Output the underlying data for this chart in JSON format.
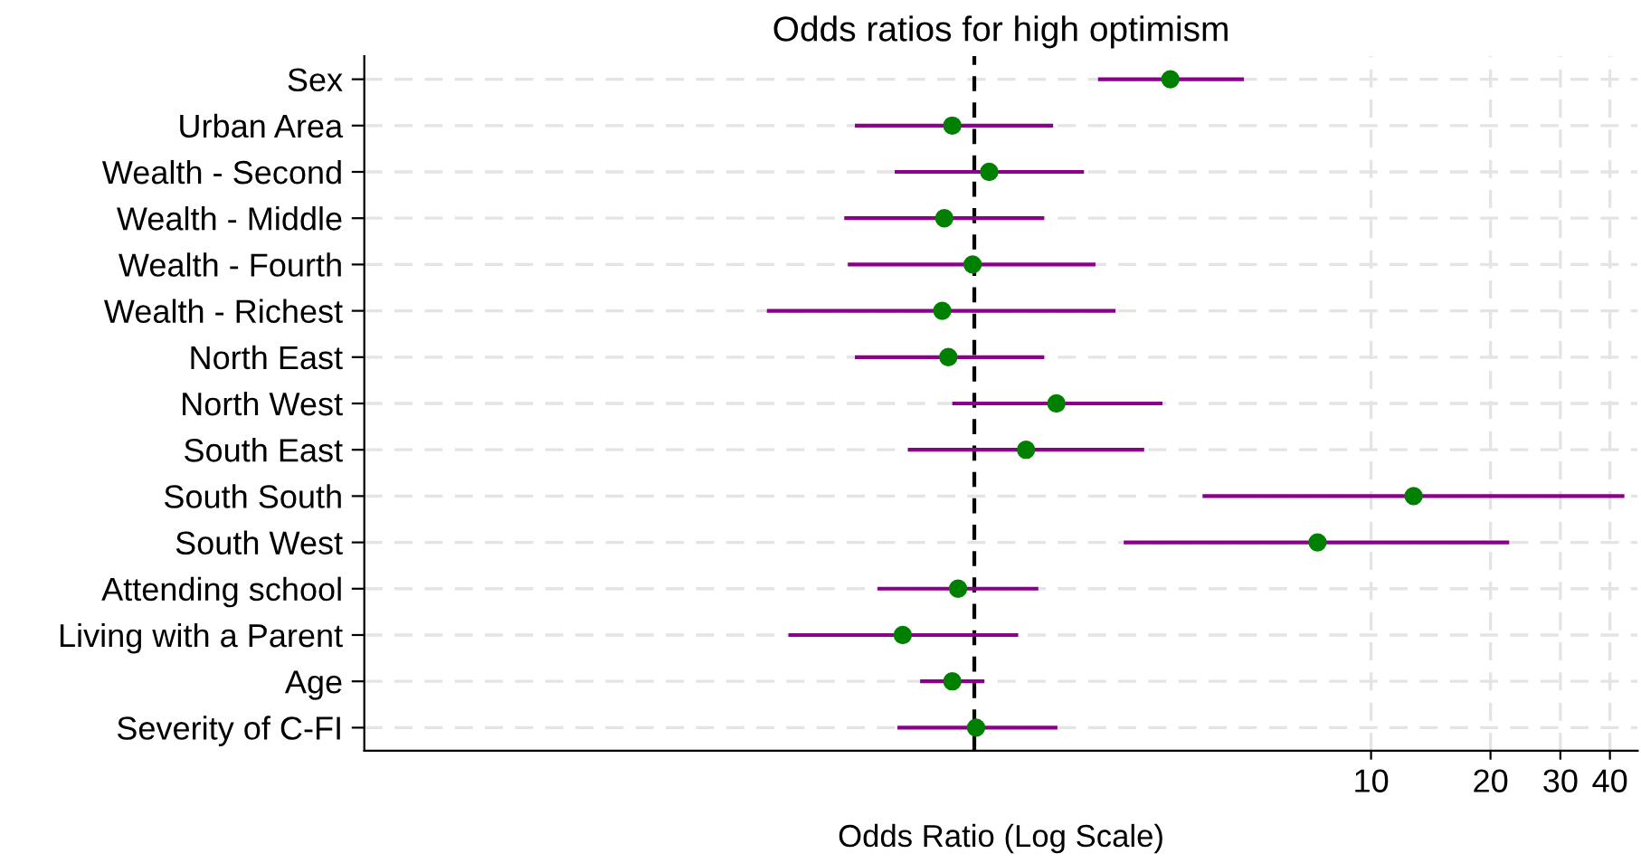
{
  "chart_data": {
    "type": "scatter",
    "orientation": "horizontal",
    "title": "Odds ratios for high optimism",
    "xlabel": "Odds Ratio (Log Scale)",
    "categories": [
      "Sex",
      "Urban Area",
      "Wealth - Second",
      "Wealth - Middle",
      "Wealth - Fourth",
      "Wealth - Richest",
      "North East",
      "North West",
      "South East",
      "South South",
      "South West",
      "Attending school",
      "Living with a Parent",
      "Age",
      "Severity of C-FI"
    ],
    "color": "#008000",
    "values": [
      3.12,
      0.88,
      1.09,
      0.84,
      0.99,
      0.83,
      0.86,
      1.61,
      1.35,
      12.8,
      7.33,
      0.91,
      0.66,
      0.88,
      1.01
    ],
    "errors": [
      [
        2.05,
        4.78
      ],
      [
        0.5,
        1.58
      ],
      [
        0.63,
        1.89
      ],
      [
        0.47,
        1.5
      ],
      [
        0.48,
        2.02
      ],
      [
        0.3,
        2.27
      ],
      [
        0.5,
        1.5
      ],
      [
        0.88,
        2.98
      ],
      [
        0.68,
        2.68
      ],
      [
        3.76,
        43.5
      ],
      [
        2.38,
        22.3
      ],
      [
        0.57,
        1.45
      ],
      [
        0.34,
        1.29
      ],
      [
        0.73,
        1.06
      ],
      [
        0.64,
        1.62
      ]
    ],
    "log": "x",
    "xlim": [
      0.029,
      47
    ],
    "xticks": [
      10,
      20,
      30,
      40
    ],
    "grid": true,
    "marker": "circle",
    "ref_lines": [
      {
        "axis": "x",
        "value": 1,
        "color": "#000000",
        "line_style": "dashed"
      }
    ]
  }
}
